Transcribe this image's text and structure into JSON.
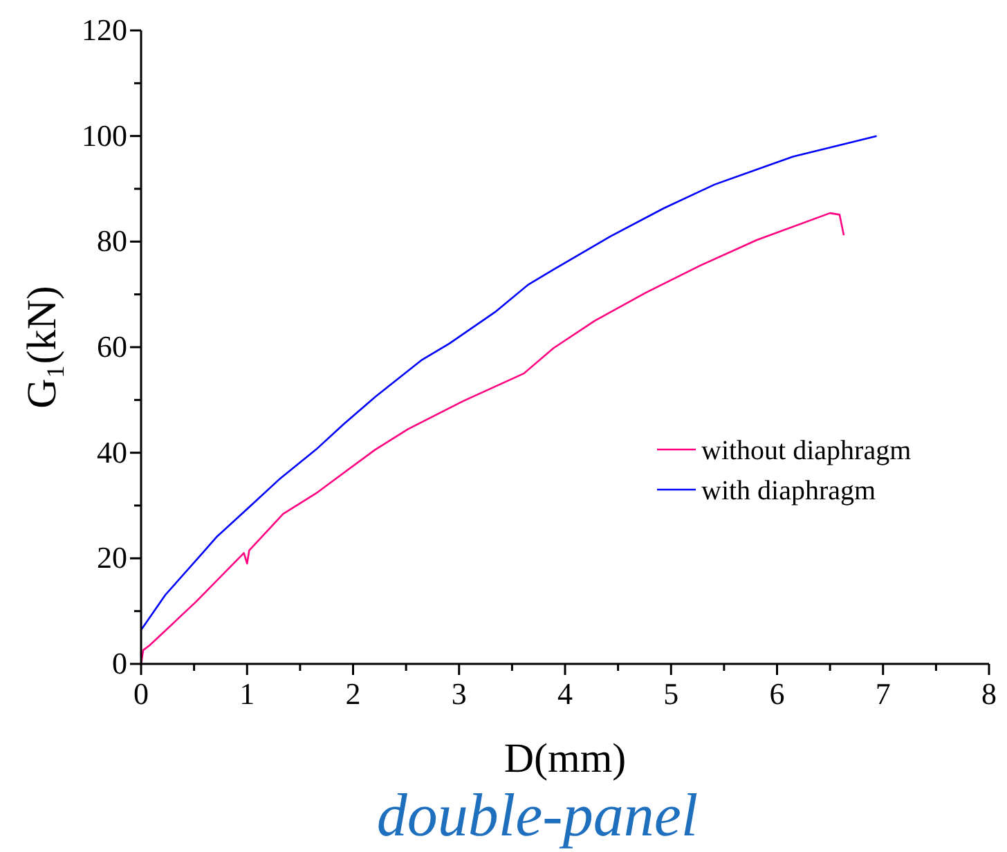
{
  "chart_data": {
    "type": "line",
    "xlabel": "D(mm)",
    "ylabel": "G₁(kN)",
    "xlim": [
      0,
      8
    ],
    "ylim": [
      0,
      120
    ],
    "xticks": [
      0,
      {
        "value": 0.5,
        "label": null
      },
      1,
      {
        "value": 1.5,
        "label": null
      },
      2,
      {
        "value": 2.5,
        "label": null
      },
      3,
      {
        "value": 3.5,
        "label": null
      },
      4,
      {
        "value": 4.5,
        "label": null
      },
      5,
      {
        "value": 5.5,
        "label": null
      },
      6,
      {
        "value": 6.5,
        "label": null
      },
      7,
      {
        "value": 7.5,
        "label": null
      },
      8
    ],
    "yticks": [
      0,
      {
        "value": 10,
        "label": null
      },
      20,
      {
        "value": 30,
        "label": null
      },
      40,
      {
        "value": 50,
        "label": null
      },
      60,
      {
        "value": 70,
        "label": null
      },
      80,
      {
        "value": 90,
        "label": null
      },
      100,
      {
        "value": 110,
        "label": null
      },
      120
    ],
    "grid": false,
    "legend": "right",
    "line_style": "solid",
    "marker": "none",
    "annotations": [
      "double-panel"
    ],
    "series": [
      {
        "name": "without diaphragm",
        "color": "#ff0080",
        "x": [
          0,
          0.02,
          0.08,
          0.52,
          0.97,
          1.0,
          1.02,
          1.34,
          1.65,
          2.21,
          2.52,
          3.04,
          3.61,
          3.89,
          4.28,
          4.76,
          5.28,
          5.81,
          6.5,
          6.59,
          6.63
        ],
        "values": [
          0,
          2.6,
          3.5,
          11.8,
          21,
          19,
          21.5,
          28.4,
          32.3,
          40.6,
          44.5,
          49.8,
          55,
          59.8,
          65,
          70.3,
          75.5,
          80.3,
          85.4,
          85.1,
          81.2
        ]
      },
      {
        "name": "with diaphragm",
        "color": "#0000ff",
        "x": [
          0,
          0.02,
          0.23,
          0.58,
          0.71,
          1.02,
          1.3,
          1.65,
          1.91,
          2.21,
          2.65,
          2.91,
          3.35,
          3.65,
          3.89,
          4.43,
          4.93,
          5.41,
          6.15,
          6.94
        ],
        "values": [
          6.5,
          7,
          13.1,
          21,
          24,
          29.7,
          34.9,
          40.6,
          45.4,
          50.6,
          57.6,
          60.7,
          66.8,
          71.8,
          74.7,
          81,
          86.3,
          90.8,
          96.1,
          100
        ]
      }
    ]
  }
}
